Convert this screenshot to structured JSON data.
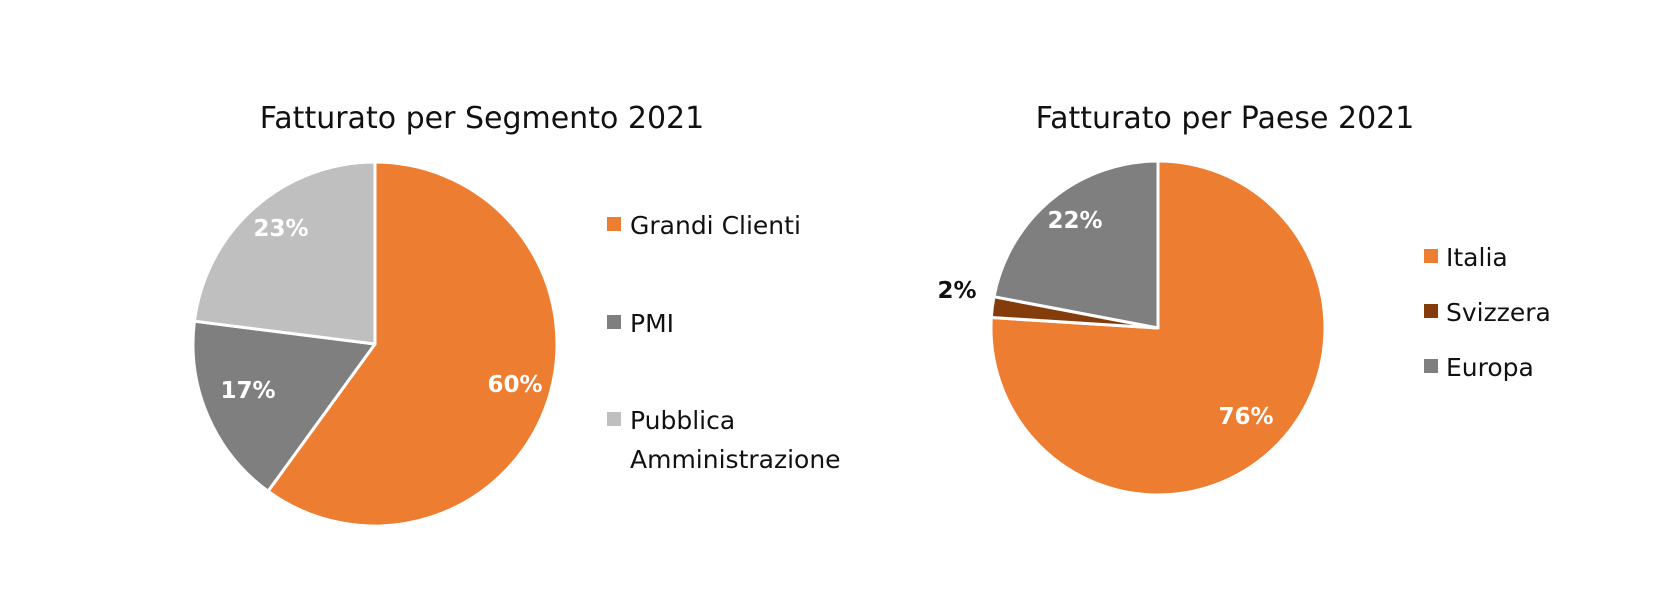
{
  "chart_data": [
    {
      "type": "pie",
      "title": "Fatturato per Segmento 2021",
      "categories": [
        "Grandi Clienti",
        "PMI",
        "Pubblica Amministrazione"
      ],
      "legend_lines": [
        [
          "Grandi Clienti"
        ],
        [
          "PMI"
        ],
        [
          "Pubblica",
          "Amministrazione"
        ]
      ],
      "values": [
        60,
        17,
        23
      ],
      "labels": [
        "60%",
        "17%",
        "23%"
      ],
      "colors": [
        "#ED7D31",
        "#7F7F7F",
        "#BFBFBF"
      ],
      "label_colors": [
        "#ffffff",
        "#ffffff",
        "#ffffff"
      ],
      "legend_position": "right"
    },
    {
      "type": "pie",
      "title": "Fatturato per Paese 2021",
      "categories": [
        "Italia",
        "Svizzera",
        "Europa"
      ],
      "legend_lines": [
        [
          "Italia"
        ],
        [
          "Svizzera"
        ],
        [
          "Europa"
        ]
      ],
      "values": [
        76,
        2,
        22
      ],
      "labels": [
        "76%",
        "2%",
        "22%"
      ],
      "colors": [
        "#ED7D31",
        "#843C0C",
        "#7F7F7F"
      ],
      "label_colors": [
        "#ffffff",
        "#111111",
        "#ffffff"
      ],
      "legend_position": "right"
    }
  ]
}
